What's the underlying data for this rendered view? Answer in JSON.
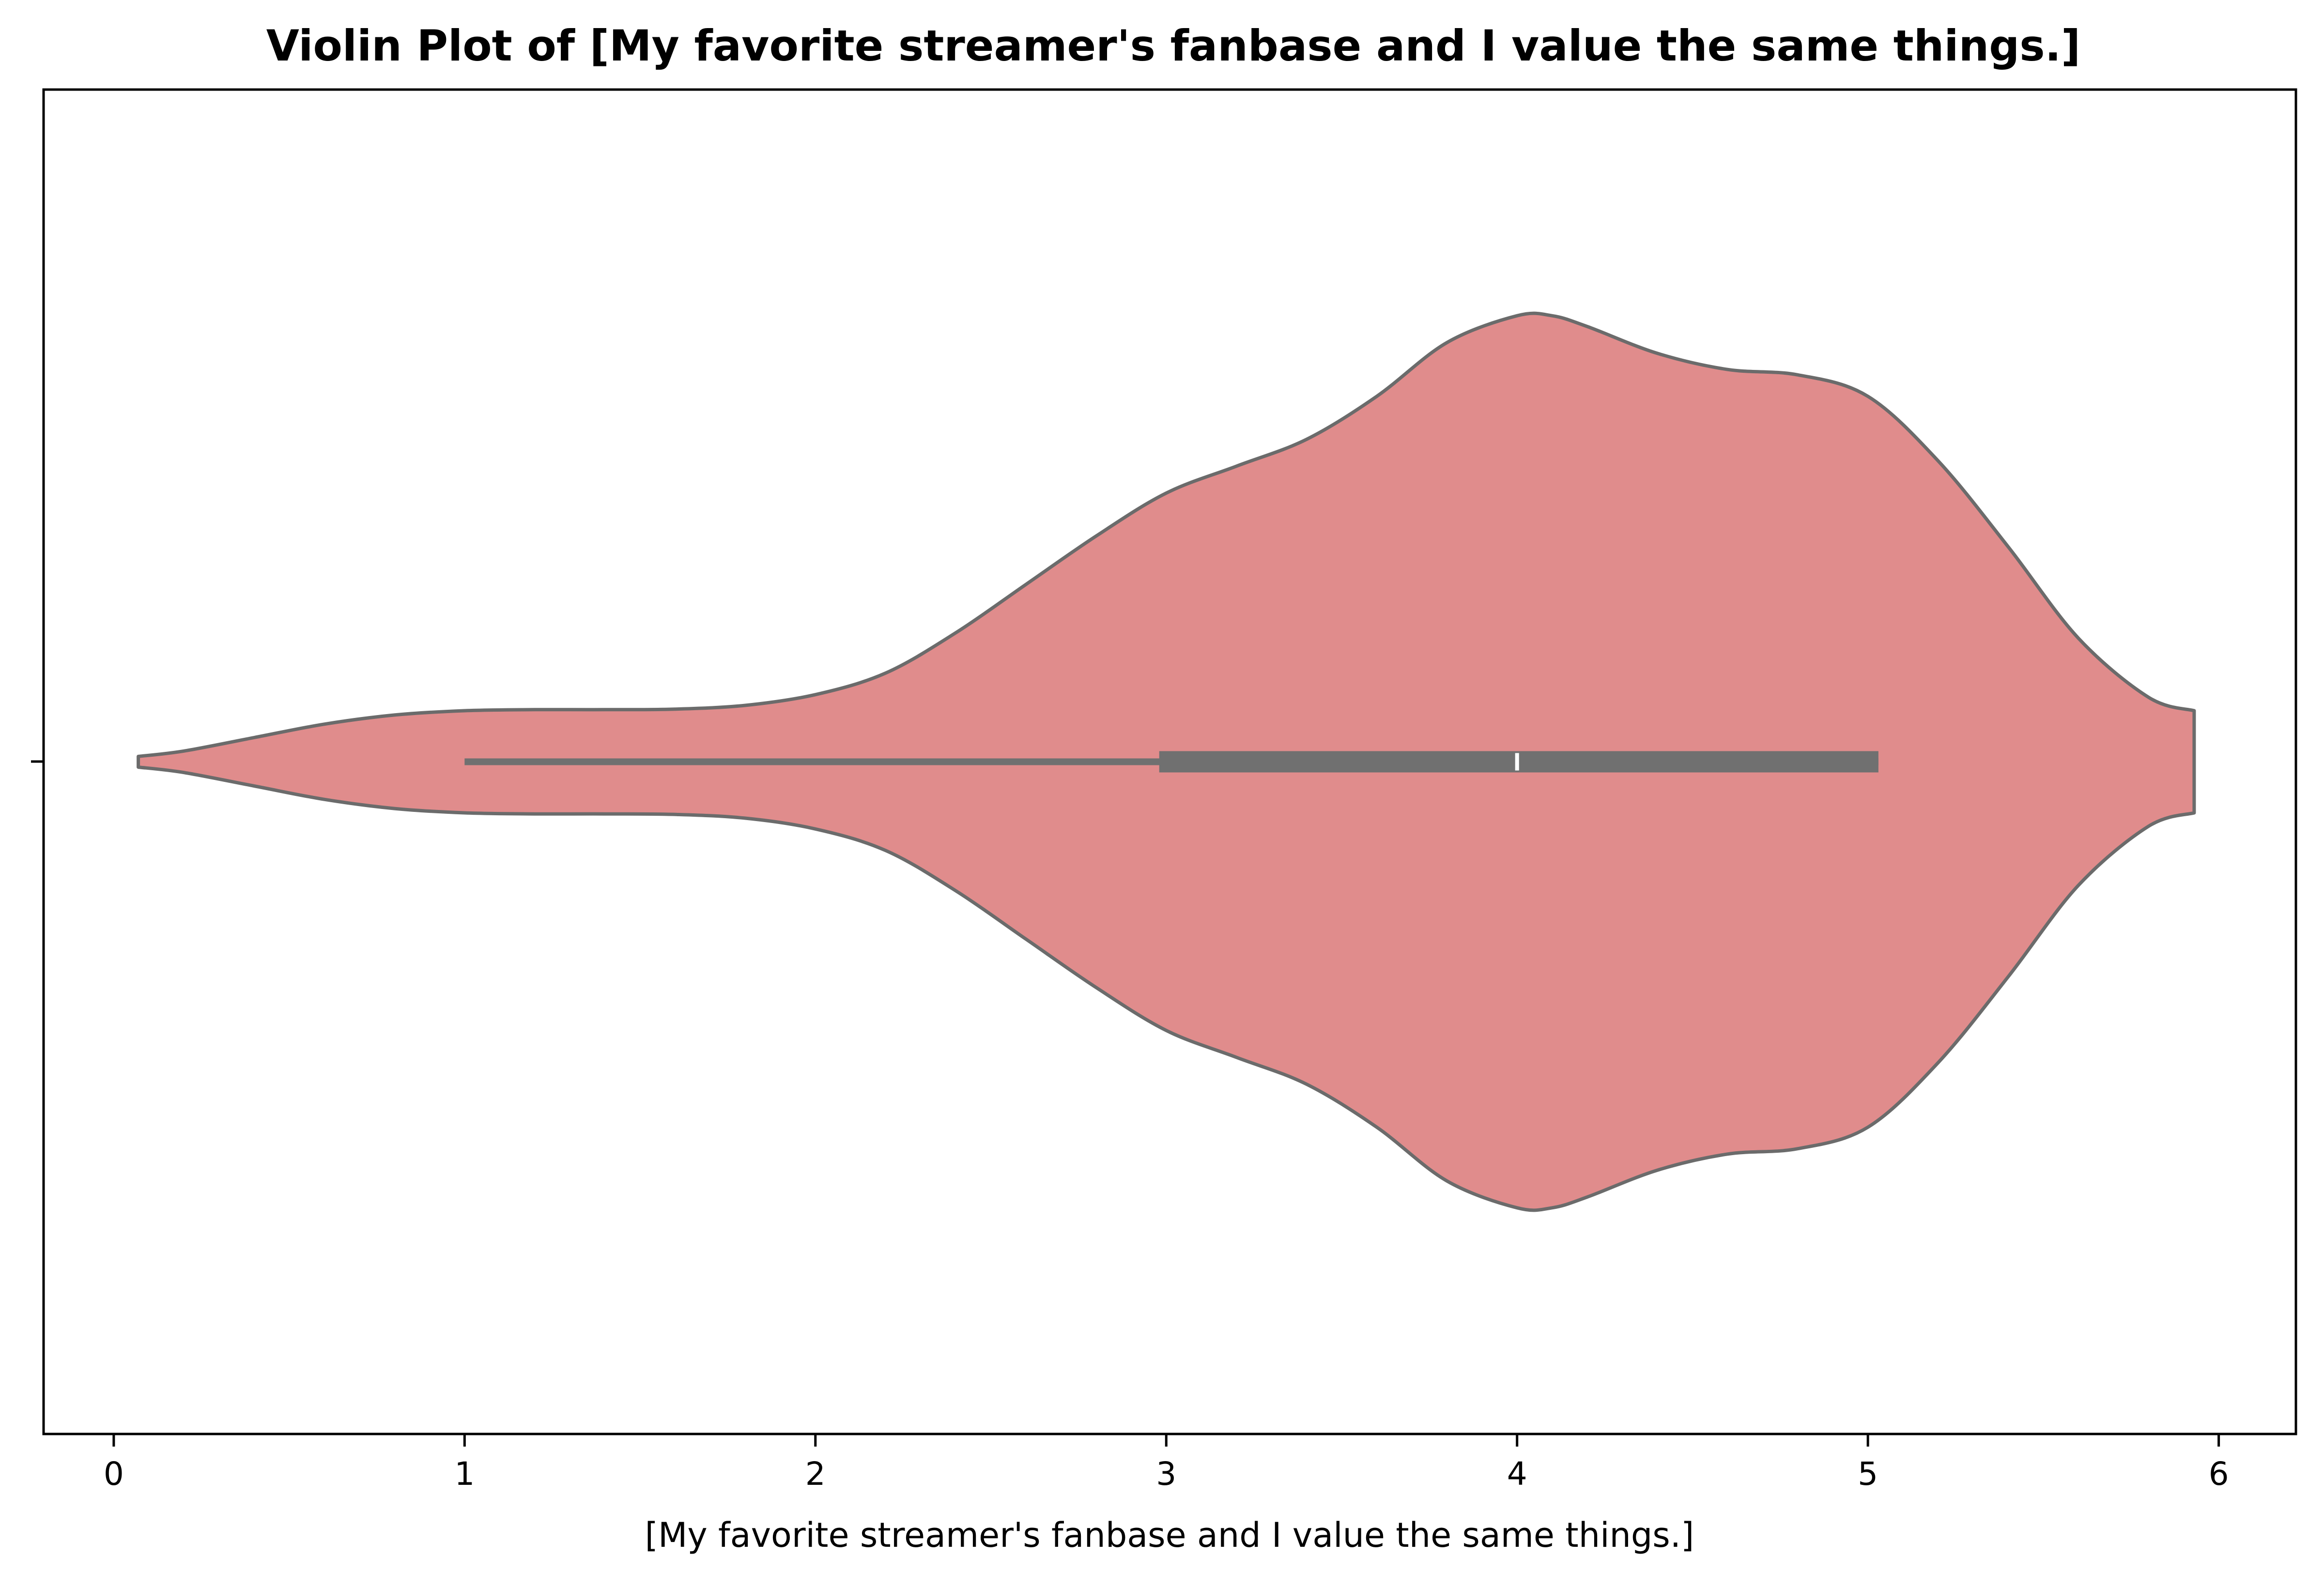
{
  "chart_data": {
    "type": "violin",
    "title": "Violin Plot of [My favorite streamer's fanbase and I value the same things.]",
    "xlabel": "[My favorite streamer's fanbase and I value the same things.]",
    "ylabel": "",
    "xlim": [
      -0.2,
      6.22
    ],
    "xticks": [
      "0",
      "1",
      "2",
      "3",
      "4",
      "5",
      "6"
    ],
    "grid": false,
    "legend": "none",
    "colors": {
      "fill": "#e08c8c",
      "edge": "#6b6b6b",
      "box": "#707070",
      "median": "#ffffff"
    },
    "series": [
      {
        "density": {
          "x": [
            0.07,
            0.2,
            0.4,
            0.6,
            0.8,
            1.0,
            1.2,
            1.4,
            1.6,
            1.8,
            2.0,
            2.2,
            2.4,
            2.6,
            2.8,
            3.0,
            3.2,
            3.4,
            3.6,
            3.8,
            4.0,
            4.1,
            4.2,
            4.4,
            4.6,
            4.8,
            5.0,
            5.2,
            5.4,
            5.6,
            5.8,
            5.93
          ],
          "width": [
            0.01,
            0.02,
            0.045,
            0.07,
            0.087,
            0.095,
            0.097,
            0.097,
            0.098,
            0.105,
            0.125,
            0.165,
            0.24,
            0.33,
            0.42,
            0.5,
            0.55,
            0.6,
            0.68,
            0.78,
            0.83,
            0.83,
            0.81,
            0.76,
            0.73,
            0.72,
            0.68,
            0.56,
            0.4,
            0.23,
            0.12,
            0.095
          ]
        },
        "whisker_low": 1.0,
        "q1": 2.98,
        "median": 4.0,
        "q3": 5.03,
        "whisker_high": 5.03
      }
    ]
  }
}
